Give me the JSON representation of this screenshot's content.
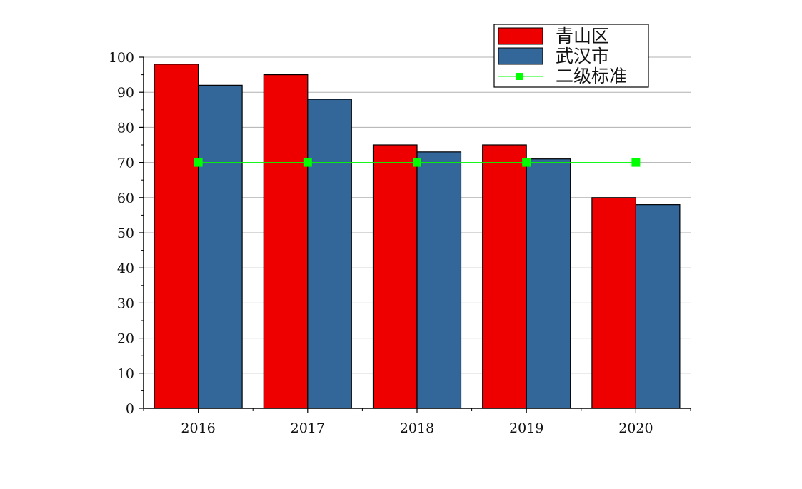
{
  "chart_data": {
    "type": "bar",
    "categories": [
      "2016",
      "2017",
      "2018",
      "2019",
      "2020"
    ],
    "series": [
      {
        "name": "青山区",
        "kind": "bar",
        "color": "#EE0000",
        "values": [
          98,
          95,
          75,
          75,
          60
        ]
      },
      {
        "name": "武汉市",
        "kind": "bar",
        "color": "#336699",
        "values": [
          92,
          88,
          73,
          71,
          58
        ]
      },
      {
        "name": "二级标准",
        "kind": "line",
        "color": "#00FF00",
        "values": [
          70,
          70,
          70,
          70,
          70
        ]
      }
    ],
    "title": "",
    "xlabel": "",
    "ylabel": "",
    "ylim": [
      0,
      100
    ],
    "yticks": [
      0,
      10,
      20,
      30,
      40,
      50,
      60,
      70,
      80,
      90,
      100
    ],
    "grid": true,
    "legend_position": "top-right"
  }
}
